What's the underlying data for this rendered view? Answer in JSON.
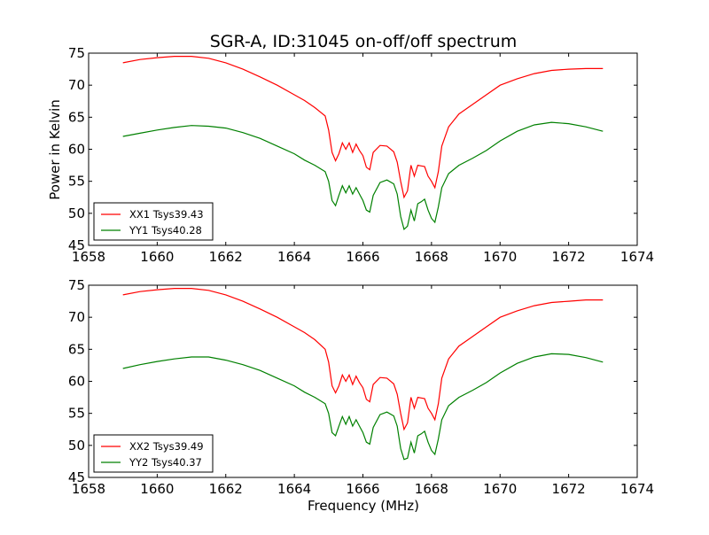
{
  "chart_data": [
    {
      "type": "line",
      "title": "SGR-A, ID:31045 on-off/off spectrum",
      "xlabel": "",
      "ylabel": "Power in Kelvin",
      "xlim": [
        1658,
        1674
      ],
      "ylim": [
        45,
        75
      ],
      "xticks": [
        1658,
        1660,
        1662,
        1664,
        1666,
        1668,
        1670,
        1672,
        1674
      ],
      "yticks": [
        45,
        50,
        55,
        60,
        65,
        70,
        75
      ],
      "legend_position": "lower-left",
      "grid": false,
      "series": [
        {
          "name": "XX1 Tsys39.43",
          "color": "#ff0000",
          "x": [
            1659.0,
            1659.5,
            1660.0,
            1660.5,
            1661.0,
            1661.5,
            1662.0,
            1662.5,
            1663.0,
            1663.5,
            1664.0,
            1664.3,
            1664.6,
            1664.9,
            1665.0,
            1665.1,
            1665.2,
            1665.3,
            1665.4,
            1665.5,
            1665.6,
            1665.7,
            1665.8,
            1665.9,
            1666.0,
            1666.1,
            1666.2,
            1666.3,
            1666.5,
            1666.7,
            1666.9,
            1667.0,
            1667.1,
            1667.2,
            1667.3,
            1667.4,
            1667.5,
            1667.6,
            1667.7,
            1667.8,
            1667.9,
            1668.0,
            1668.1,
            1668.2,
            1668.3,
            1668.5,
            1668.8,
            1669.2,
            1669.6,
            1670.0,
            1670.5,
            1671.0,
            1671.5,
            1672.0,
            1672.5,
            1673.0
          ],
          "y": [
            73.5,
            74.0,
            74.3,
            74.5,
            74.5,
            74.2,
            73.5,
            72.5,
            71.3,
            70.0,
            68.5,
            67.6,
            66.5,
            65.2,
            63.0,
            59.5,
            58.2,
            59.3,
            61.0,
            60.0,
            61.0,
            59.5,
            60.8,
            59.8,
            59.0,
            57.2,
            56.8,
            59.5,
            60.6,
            60.5,
            59.6,
            58.0,
            55.0,
            52.5,
            53.5,
            57.5,
            55.8,
            57.5,
            57.4,
            57.3,
            55.8,
            55.0,
            54.0,
            56.5,
            60.5,
            63.5,
            65.5,
            67.0,
            68.5,
            70.0,
            71.0,
            71.8,
            72.3,
            72.5,
            72.6,
            72.6
          ]
        },
        {
          "name": "YY1 Tsys40.28",
          "color": "#008000",
          "x": [
            1659.0,
            1659.5,
            1660.0,
            1660.5,
            1661.0,
            1661.5,
            1662.0,
            1662.5,
            1663.0,
            1663.5,
            1664.0,
            1664.3,
            1664.6,
            1664.9,
            1665.0,
            1665.1,
            1665.2,
            1665.3,
            1665.4,
            1665.5,
            1665.6,
            1665.7,
            1665.8,
            1665.9,
            1666.0,
            1666.1,
            1666.2,
            1666.3,
            1666.5,
            1666.7,
            1666.9,
            1667.0,
            1667.1,
            1667.2,
            1667.3,
            1667.4,
            1667.5,
            1667.6,
            1667.7,
            1667.8,
            1667.9,
            1668.0,
            1668.1,
            1668.2,
            1668.3,
            1668.5,
            1668.8,
            1669.2,
            1669.6,
            1670.0,
            1670.5,
            1671.0,
            1671.5,
            1672.0,
            1672.5,
            1673.0
          ],
          "y": [
            62.0,
            62.5,
            63.0,
            63.4,
            63.7,
            63.6,
            63.3,
            62.6,
            61.7,
            60.5,
            59.3,
            58.3,
            57.5,
            56.5,
            55.0,
            52.0,
            51.2,
            52.8,
            54.3,
            53.2,
            54.3,
            53.0,
            54.0,
            53.0,
            52.0,
            50.5,
            50.2,
            52.8,
            54.8,
            55.2,
            54.6,
            53.0,
            49.5,
            47.5,
            48.0,
            50.5,
            48.8,
            51.5,
            51.8,
            52.2,
            50.5,
            49.2,
            48.6,
            51.0,
            54.0,
            56.2,
            57.5,
            58.6,
            59.8,
            61.3,
            62.8,
            63.8,
            64.2,
            64.0,
            63.5,
            62.8
          ]
        }
      ]
    },
    {
      "type": "line",
      "title": "",
      "xlabel": "Frequency (MHz)",
      "ylabel": "",
      "xlim": [
        1658,
        1674
      ],
      "ylim": [
        45,
        75
      ],
      "xticks": [
        1658,
        1660,
        1662,
        1664,
        1666,
        1668,
        1670,
        1672,
        1674
      ],
      "yticks": [
        45,
        50,
        55,
        60,
        65,
        70,
        75
      ],
      "legend_position": "lower-left",
      "grid": false,
      "series": [
        {
          "name": "XX2 Tsys39.49",
          "color": "#ff0000",
          "x": [
            1659.0,
            1659.5,
            1660.0,
            1660.5,
            1661.0,
            1661.5,
            1662.0,
            1662.5,
            1663.0,
            1663.5,
            1664.0,
            1664.3,
            1664.6,
            1664.9,
            1665.0,
            1665.1,
            1665.2,
            1665.3,
            1665.4,
            1665.5,
            1665.6,
            1665.7,
            1665.8,
            1665.9,
            1666.0,
            1666.1,
            1666.2,
            1666.3,
            1666.5,
            1666.7,
            1666.9,
            1667.0,
            1667.1,
            1667.2,
            1667.3,
            1667.4,
            1667.5,
            1667.6,
            1667.7,
            1667.8,
            1667.9,
            1668.0,
            1668.1,
            1668.2,
            1668.3,
            1668.5,
            1668.8,
            1669.2,
            1669.6,
            1670.0,
            1670.5,
            1671.0,
            1671.5,
            1672.0,
            1672.5,
            1673.0
          ],
          "y": [
            73.5,
            74.0,
            74.3,
            74.5,
            74.5,
            74.2,
            73.5,
            72.5,
            71.3,
            70.0,
            68.5,
            67.6,
            66.5,
            65.0,
            63.0,
            59.3,
            58.2,
            59.3,
            61.0,
            60.0,
            61.0,
            59.5,
            60.8,
            59.8,
            59.0,
            57.2,
            56.8,
            59.5,
            60.6,
            60.5,
            59.6,
            58.0,
            55.0,
            52.5,
            53.5,
            57.5,
            55.8,
            57.5,
            57.4,
            57.3,
            55.8,
            55.0,
            54.0,
            56.5,
            60.5,
            63.5,
            65.5,
            67.0,
            68.5,
            70.0,
            71.0,
            71.8,
            72.3,
            72.5,
            72.7,
            72.7
          ]
        },
        {
          "name": "YY2 Tsys40.37",
          "color": "#008000",
          "x": [
            1659.0,
            1659.5,
            1660.0,
            1660.5,
            1661.0,
            1661.5,
            1662.0,
            1662.5,
            1663.0,
            1663.5,
            1664.0,
            1664.3,
            1664.6,
            1664.9,
            1665.0,
            1665.1,
            1665.2,
            1665.3,
            1665.4,
            1665.5,
            1665.6,
            1665.7,
            1665.8,
            1665.9,
            1666.0,
            1666.1,
            1666.2,
            1666.3,
            1666.5,
            1666.7,
            1666.9,
            1667.0,
            1667.1,
            1667.2,
            1667.3,
            1667.4,
            1667.5,
            1667.6,
            1667.7,
            1667.8,
            1667.9,
            1668.0,
            1668.1,
            1668.2,
            1668.3,
            1668.5,
            1668.8,
            1669.2,
            1669.6,
            1670.0,
            1670.5,
            1671.0,
            1671.5,
            1672.0,
            1672.5,
            1673.0
          ],
          "y": [
            62.0,
            62.6,
            63.1,
            63.5,
            63.8,
            63.8,
            63.3,
            62.6,
            61.7,
            60.5,
            59.3,
            58.3,
            57.5,
            56.5,
            55.0,
            52.0,
            51.5,
            53.0,
            54.5,
            53.3,
            54.5,
            53.0,
            54.0,
            53.0,
            52.0,
            50.5,
            50.2,
            52.8,
            54.8,
            55.2,
            54.6,
            53.0,
            49.5,
            47.8,
            48.0,
            50.5,
            48.8,
            51.5,
            51.8,
            52.2,
            50.5,
            49.2,
            48.6,
            51.0,
            54.0,
            56.2,
            57.5,
            58.6,
            59.8,
            61.3,
            62.8,
            63.8,
            64.3,
            64.2,
            63.7,
            63.0
          ]
        }
      ]
    }
  ]
}
